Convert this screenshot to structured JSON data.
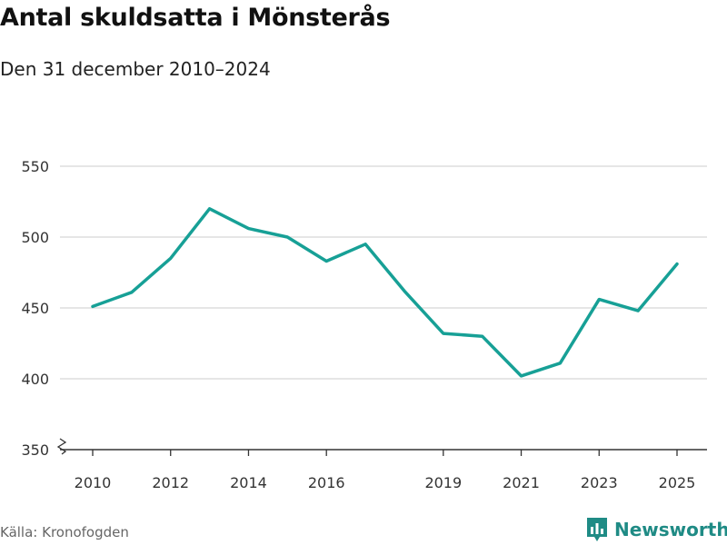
{
  "header": {
    "title": "Antal skuldsatta i Mönsterås",
    "subtitle": "Den 31 december 2010–2024"
  },
  "footer": {
    "source": "Källa: Kronofogden",
    "brand": "Newsworthy"
  },
  "colors": {
    "line": "#17a096",
    "grid": "#dddddd",
    "axis": "#333333",
    "brand": "#1f8b85"
  },
  "chart_data": {
    "type": "line",
    "title": "Antal skuldsatta i Mönsterås",
    "subtitle": "Den 31 december 2010–2024",
    "xlabel": "",
    "ylabel": "",
    "ylim": [
      350,
      550
    ],
    "xlim": [
      2010,
      2025
    ],
    "y_broken_axis": true,
    "grid": true,
    "yticks": [
      350,
      400,
      450,
      500,
      550
    ],
    "xticks": [
      2010,
      2012,
      2014,
      2016,
      2019,
      2021,
      2023,
      2025
    ],
    "series": [
      {
        "name": "Antal skuldsatta",
        "x": [
          2010,
          2011,
          2012,
          2013,
          2014,
          2015,
          2016,
          2017,
          2018,
          2019,
          2020,
          2021,
          2022,
          2023,
          2024,
          2025
        ],
        "values": [
          451,
          461,
          485,
          520,
          506,
          500,
          483,
          495,
          462,
          432,
          430,
          402,
          411,
          456,
          448,
          481
        ]
      }
    ]
  }
}
